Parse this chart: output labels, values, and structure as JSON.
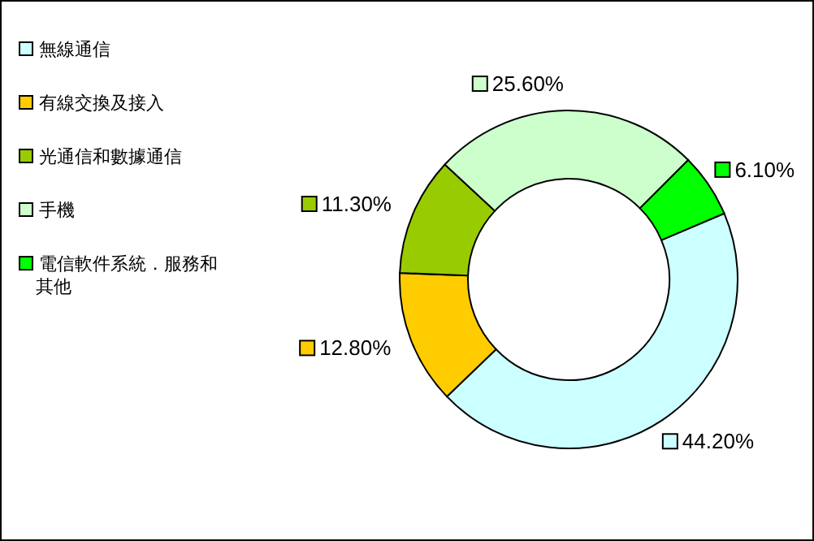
{
  "chart_data": {
    "type": "donut",
    "categories": [
      "無線通信",
      "有線交換及接入",
      "光通信和數據通信",
      "手機",
      "電信軟件系統．服務和其他"
    ],
    "values": [
      44.2,
      12.8,
      11.3,
      25.6,
      6.1
    ],
    "colors": [
      "#ccffff",
      "#ffcc00",
      "#99cc00",
      "#ccffcc",
      "#00ff00"
    ],
    "value_labels": [
      "44.20%",
      "12.80%",
      "11.30%",
      "25.60%",
      "6.10%"
    ],
    "legend": "left"
  }
}
